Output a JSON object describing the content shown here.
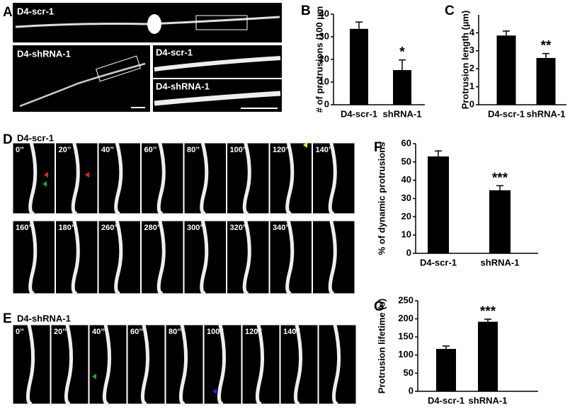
{
  "panel_a": {
    "panel": "A",
    "labels": [
      "D4-scr-1",
      "D4-shRNA-1",
      "D4-scr-1",
      "D4-shRNA-1"
    ]
  },
  "panel_d": {
    "panel": "D",
    "label": "D4-scr-1",
    "row1": [
      "0’’",
      "20’’",
      "40’’",
      "60’’",
      "80’’",
      "100’’",
      "120’’",
      "140’’"
    ],
    "row2": [
      "160’’",
      "180’’",
      "260’’",
      "280’’",
      "300’’",
      "320’’",
      "340’’"
    ]
  },
  "panel_e": {
    "panel": "E",
    "label": "D4-shRNA-1",
    "row1": [
      "0’’",
      "20’’",
      "40’’",
      "60’’",
      "80’’",
      "100’’",
      "120’’",
      "140’’"
    ]
  },
  "chart_data": [
    {
      "type": "bar",
      "panel": "B",
      "y_label": "# of protrusions /100 µm",
      "categories": [
        "D4-scr-1",
        "shRNA-1"
      ],
      "values": [
        33.5,
        15.3
      ],
      "errors": [
        3,
        4.5
      ],
      "annotation": "*",
      "color": "#000000",
      "ylim": [
        0,
        40
      ],
      "yticks": [
        0,
        10,
        20,
        30,
        40
      ]
    },
    {
      "type": "bar",
      "panel": "C",
      "y_label": "Protrusion length (µm)",
      "categories": [
        "D4-scr-1",
        "shRNA-1"
      ],
      "values": [
        3.85,
        2.6
      ],
      "errors": [
        0.25,
        0.25
      ],
      "annotation": "**",
      "color": "#000000",
      "ylim": [
        0,
        5
      ],
      "yticks": [
        0,
        1,
        2,
        3,
        4
      ]
    },
    {
      "type": "bar",
      "panel": "F",
      "y_label": "% of dynamic protrusions",
      "categories": [
        "D4-scr-1",
        "shRNA-1"
      ],
      "values": [
        53,
        34.5
      ],
      "errors": [
        3,
        2.5
      ],
      "annotation": "***",
      "color": "#000000",
      "ylim": [
        0,
        60
      ],
      "yticks": [
        0,
        10,
        20,
        30,
        40,
        50,
        60
      ]
    },
    {
      "type": "bar",
      "panel": "G",
      "y_label": "Protrusion lifetime (s)",
      "categories": [
        "D4-scr-1",
        "shRNA-1"
      ],
      "values": [
        117,
        192
      ],
      "errors": [
        8,
        7
      ],
      "annotation": "***",
      "color": "#000000",
      "ylim": [
        0,
        250
      ],
      "yticks": [
        0,
        50,
        100,
        150,
        200,
        250
      ]
    }
  ]
}
